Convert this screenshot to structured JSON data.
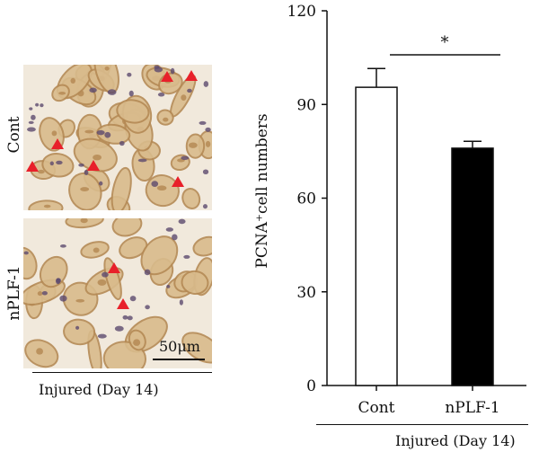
{
  "left_panel": {
    "rows": [
      {
        "label": "Cont"
      },
      {
        "label": "nPLF-1"
      }
    ],
    "scale_bar_label": "50μm",
    "group_label": "Injured (Day 14)",
    "colors": {
      "marker": "#e8202a",
      "stain": "#b58a55",
      "tissue": "#d9bb8c",
      "background": "#f1e9dc",
      "nuclei": "#5c4a6e"
    }
  },
  "chart_data": {
    "type": "bar",
    "categories": [
      "Cont",
      "nPLF-1"
    ],
    "values": [
      95.5,
      76
    ],
    "errors": [
      6,
      2.2
    ],
    "bar_colors": [
      "#ffffff",
      "#000000"
    ],
    "ylabel": "PCNA⁺cell numbers",
    "xlabel": "Injured (Day 14)",
    "ylim": [
      0,
      120
    ],
    "yticks": [
      0,
      30,
      60,
      90,
      120
    ],
    "significance": "*"
  }
}
